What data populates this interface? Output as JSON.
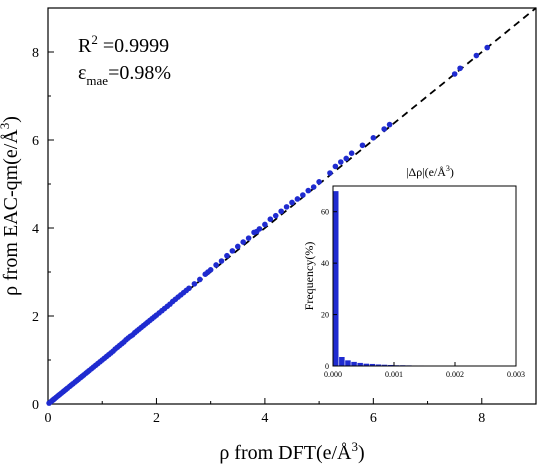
{
  "chart_data": [
    {
      "type": "scatter",
      "xlabel": "ρ from DFT(e/Å³)",
      "ylabel": "ρ from EAC-qm(e/Å³)",
      "xlim": [
        0,
        9
      ],
      "ylim": [
        0,
        9
      ],
      "xticks": [
        0,
        2,
        4,
        6,
        8
      ],
      "yticks": [
        0,
        2,
        4,
        6,
        8
      ],
      "annotations": {
        "r2": "R² =0.9999",
        "mae": "εmae=0.98%"
      },
      "reference_line": {
        "type": "y=x",
        "style": "dashed",
        "color": "#000000"
      },
      "point_color": "#1f2bd0",
      "series": [
        {
          "x": [
            0.02,
            0.05,
            0.08,
            0.1,
            0.12,
            0.15,
            0.18,
            0.2,
            0.22,
            0.25,
            0.28,
            0.3,
            0.33,
            0.36,
            0.4,
            0.43,
            0.46,
            0.5,
            0.53,
            0.56,
            0.6,
            0.63,
            0.66,
            0.7,
            0.73,
            0.76,
            0.8,
            0.84,
            0.88,
            0.92,
            0.96,
            1.0,
            1.04,
            1.08,
            1.12,
            1.16,
            1.2,
            1.24,
            1.28,
            1.32,
            1.36,
            1.4,
            1.44,
            1.48,
            1.52,
            1.56,
            1.6,
            1.64,
            1.68,
            1.72,
            1.76,
            1.8,
            1.84,
            1.88,
            1.92,
            1.96,
            2.0,
            2.05,
            2.1,
            2.15,
            2.2,
            2.25,
            2.3,
            2.35,
            2.4,
            2.45,
            2.5,
            2.55,
            2.6,
            2.7,
            2.8,
            2.9,
            2.95,
            3.0,
            3.1,
            3.2,
            3.3,
            3.4,
            3.5,
            3.6,
            3.7,
            3.8,
            3.85,
            3.9,
            4.0,
            4.1,
            4.2,
            4.3,
            4.4,
            4.5,
            4.6,
            4.7,
            4.8,
            4.9,
            5.0,
            5.2,
            5.3,
            5.4,
            5.5,
            5.6,
            5.8,
            6.0,
            6.2,
            6.3,
            7.5,
            7.6,
            7.9,
            8.1
          ],
          "y": [
            0.02,
            0.05,
            0.08,
            0.1,
            0.12,
            0.15,
            0.18,
            0.2,
            0.22,
            0.25,
            0.28,
            0.3,
            0.33,
            0.36,
            0.4,
            0.43,
            0.46,
            0.5,
            0.53,
            0.56,
            0.6,
            0.63,
            0.66,
            0.7,
            0.73,
            0.76,
            0.8,
            0.84,
            0.88,
            0.92,
            0.96,
            1.0,
            1.04,
            1.08,
            1.12,
            1.16,
            1.2,
            1.25,
            1.29,
            1.33,
            1.37,
            1.41,
            1.46,
            1.5,
            1.54,
            1.57,
            1.62,
            1.66,
            1.7,
            1.74,
            1.78,
            1.82,
            1.86,
            1.9,
            1.94,
            1.98,
            2.02,
            2.07,
            2.12,
            2.17,
            2.22,
            2.27,
            2.33,
            2.38,
            2.43,
            2.48,
            2.53,
            2.58,
            2.63,
            2.73,
            2.83,
            2.95,
            3.0,
            3.05,
            3.16,
            3.25,
            3.37,
            3.48,
            3.58,
            3.68,
            3.77,
            3.9,
            3.92,
            3.98,
            4.08,
            4.2,
            4.28,
            4.38,
            4.48,
            4.58,
            4.66,
            4.75,
            4.85,
            4.93,
            5.05,
            5.25,
            5.4,
            5.5,
            5.58,
            5.7,
            5.88,
            6.05,
            6.25,
            6.35,
            7.5,
            7.63,
            7.92,
            8.1
          ]
        }
      ]
    },
    {
      "type": "bar",
      "title": "|Δρ|(e/Å³)",
      "ylabel": "Frequency(%)",
      "xlim": [
        0,
        0.003
      ],
      "ylim": [
        0,
        70
      ],
      "xticks": [
        "0.000",
        "0.001",
        "0.002",
        "0.003"
      ],
      "yticks": [
        0,
        20,
        40,
        60
      ],
      "bar_width": 0.0001,
      "x": [
        5e-05,
        0.00015,
        0.00025,
        0.00035,
        0.00045,
        0.00055,
        0.00065,
        0.00075,
        0.00085,
        0.00095,
        0.00105,
        0.00115,
        0.00125,
        0.00135,
        0.00145,
        0.00155,
        0.00165,
        0.00175,
        0.00185,
        0.00195,
        0.00205,
        0.00215,
        0.00225,
        0.00235,
        0.00245,
        0.00255,
        0.00265,
        0.00275
      ],
      "values": [
        68,
        3.5,
        2.2,
        1.6,
        1.2,
        0.9,
        0.8,
        0.6,
        0.5,
        0.4,
        0.3,
        0.3,
        0.25,
        0.2,
        0.2,
        0.15,
        0.15,
        0.1,
        0.1,
        0.1,
        0.08,
        0.08,
        0.06,
        0.05,
        0.05,
        0.04,
        0.04,
        0.03
      ],
      "bar_color": "#1f2bd0"
    }
  ]
}
